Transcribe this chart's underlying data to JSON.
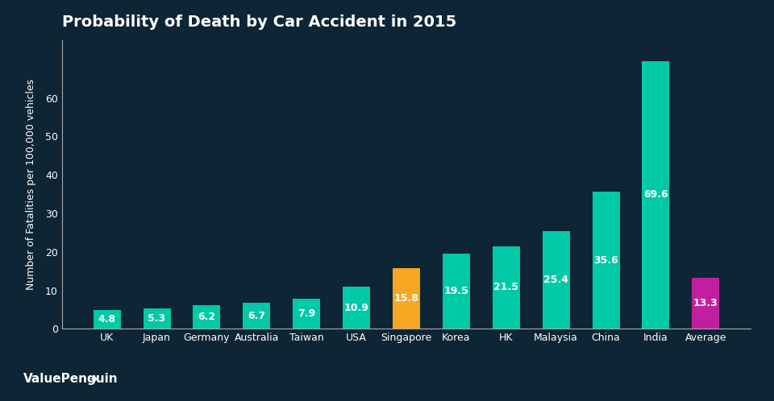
{
  "title": "Probability of Death by Car Accident in 2015",
  "ylabel": "Number of Fatalities per 100,000 vehicles",
  "categories": [
    "UK",
    "Japan",
    "Germany",
    "Australia",
    "Taiwan",
    "USA",
    "Singapore",
    "Korea",
    "HK",
    "Malaysia",
    "China",
    "India",
    "Average"
  ],
  "values": [
    4.8,
    5.3,
    6.2,
    6.7,
    7.9,
    10.9,
    15.8,
    19.5,
    21.5,
    25.4,
    35.6,
    69.6,
    13.3
  ],
  "bar_colors": [
    "#00C9A7",
    "#00C9A7",
    "#00C9A7",
    "#00C9A7",
    "#00C9A7",
    "#00C9A7",
    "#F5A623",
    "#00C9A7",
    "#00C9A7",
    "#00C9A7",
    "#00C9A7",
    "#00C9A7",
    "#C020A0"
  ],
  "background_color": "#0D2535",
  "text_color": "#FFFFFF",
  "title_fontsize": 14,
  "label_fontsize": 9,
  "tick_fontsize": 9,
  "value_fontsize": 9,
  "ylim": [
    0,
    75
  ],
  "yticks": [
    0,
    10,
    20,
    30,
    40,
    50,
    60
  ],
  "watermark": "ValuePenguin",
  "watermark_fontsize": 11
}
